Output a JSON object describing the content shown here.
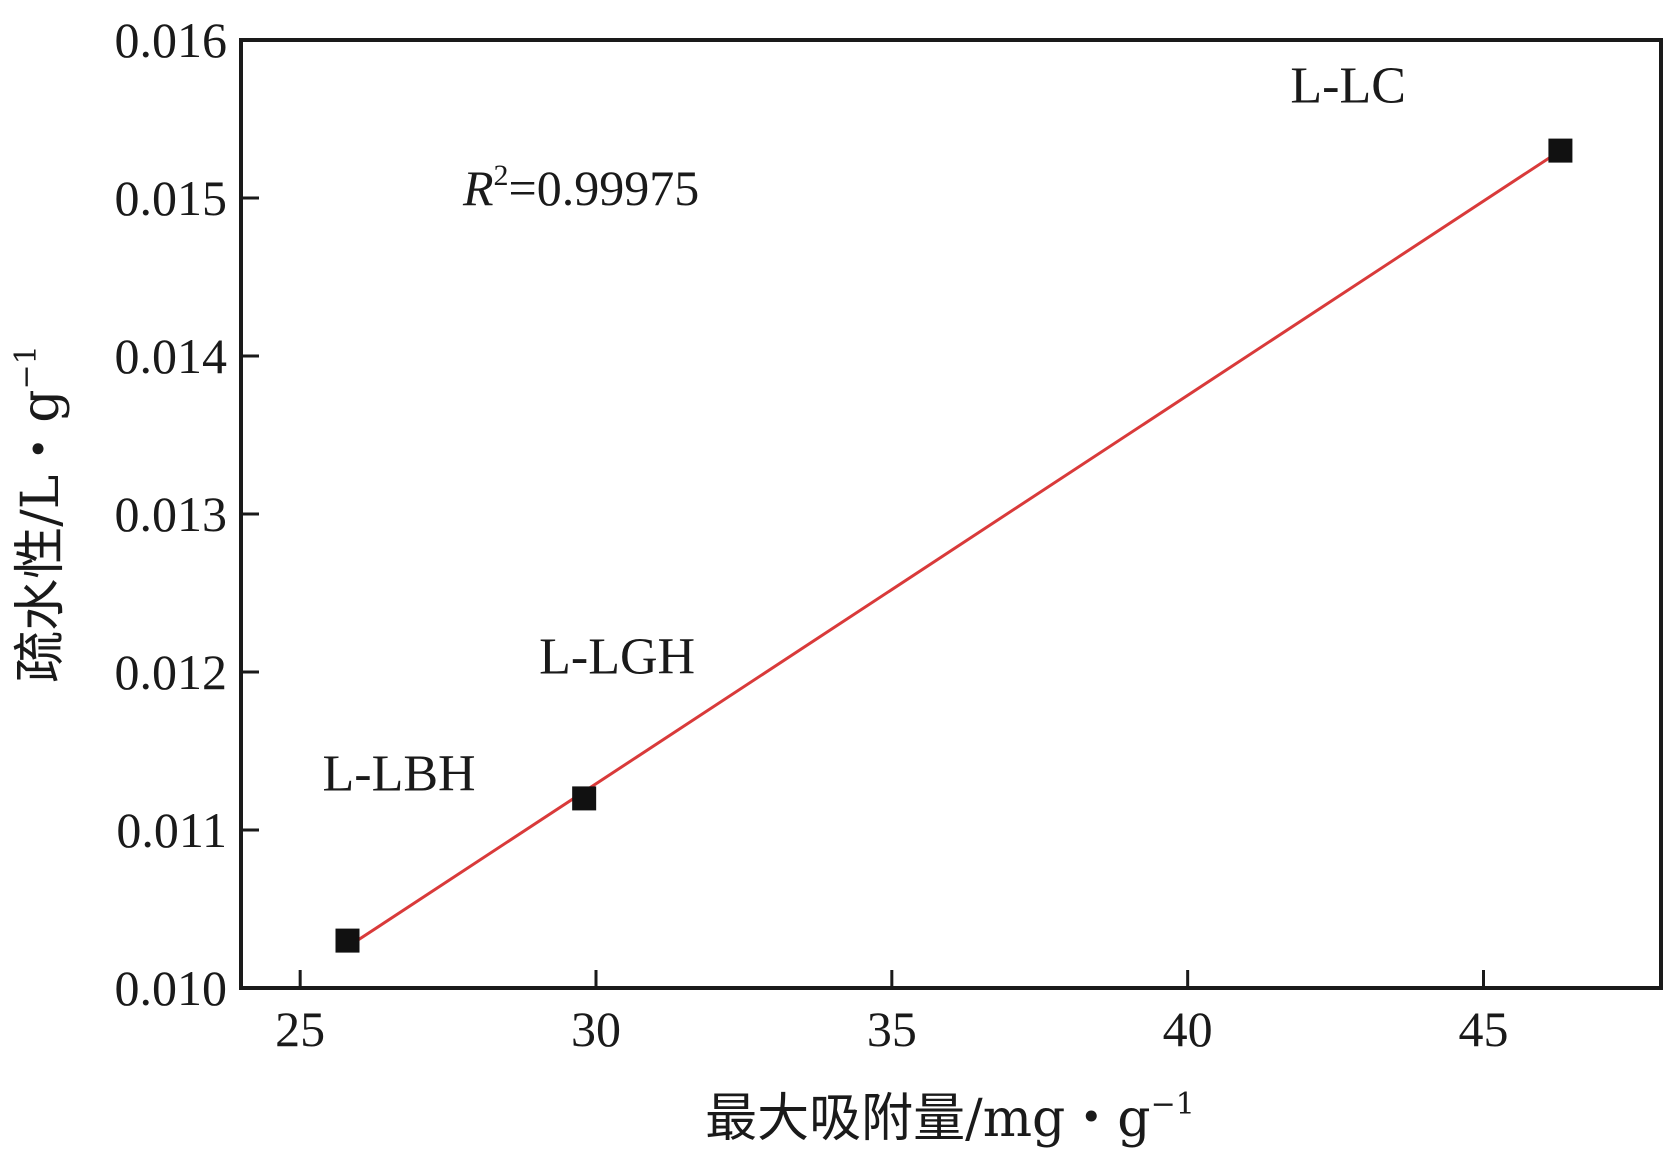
{
  "chart_data": {
    "type": "scatter",
    "xlabel": "最大吸附量/mg・g",
    "xlabel_sup": "−1",
    "ylabel": "疏水性/L・g",
    "ylabel_sup": "−1",
    "xlim": [
      24.0,
      48.0
    ],
    "ylim": [
      0.01,
      0.016
    ],
    "xticks": [
      25,
      30,
      35,
      40,
      45
    ],
    "xtick_labels": [
      "25",
      "30",
      "35",
      "40",
      "45"
    ],
    "yticks": [
      0.01,
      0.011,
      0.012,
      0.013,
      0.014,
      0.015,
      0.016
    ],
    "ytick_labels": [
      "0.010",
      "0.011",
      "0.012",
      "0.013",
      "0.014",
      "0.015",
      "0.016"
    ],
    "points": [
      {
        "label": "L-LBH",
        "x": 25.8,
        "y": 0.0103
      },
      {
        "label": "L-LGH",
        "x": 29.8,
        "y": 0.0112
      },
      {
        "label": "L-LC",
        "x": 46.3,
        "y": 0.0153
      }
    ],
    "fit_line": {
      "x": [
        25.8,
        46.3
      ],
      "y": [
        0.01026,
        0.0153
      ],
      "color": "#d93a3a"
    },
    "annotation": {
      "R": "R",
      "sup": "2",
      "rest": "=0.99975"
    },
    "marker_color": "#111111",
    "grid": false
  }
}
